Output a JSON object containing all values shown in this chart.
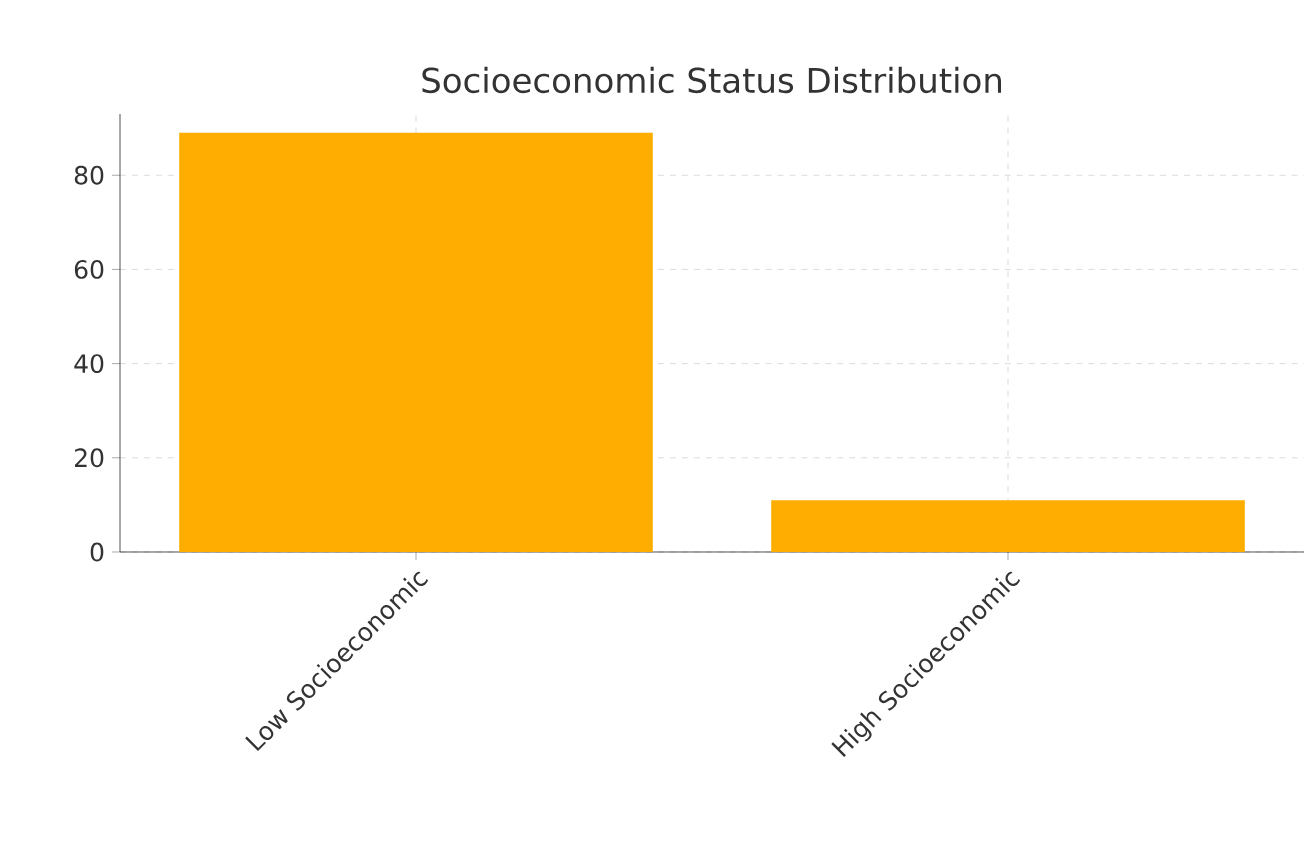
{
  "chart_data": {
    "type": "bar",
    "title": "Socioeconomic Status Distribution",
    "categories": [
      "Low Socioeconomic",
      "High Socioeconomic"
    ],
    "values": [
      89,
      11
    ],
    "color": "#ffad00",
    "ylim": [
      0,
      93
    ],
    "yticks": [
      0,
      20,
      40,
      60,
      80
    ],
    "grid": true
  }
}
